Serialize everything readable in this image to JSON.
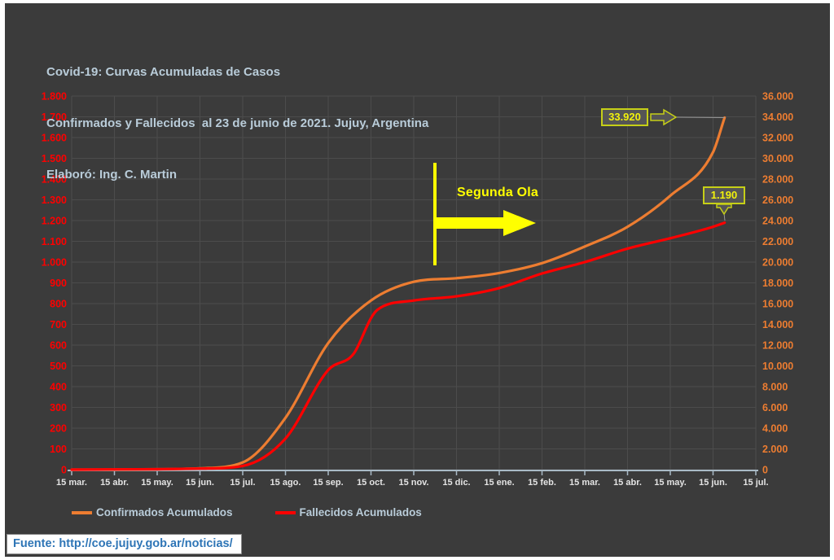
{
  "title": {
    "line1": "Covid-19: Curvas Acumuladas de Casos",
    "line2": "Confirmados y Fallecidos  al 23 de junio de 2021. Jujuy, Argentina",
    "line3": "Elaboró: Ing. C. Martin"
  },
  "chart_data": {
    "type": "line",
    "title": "Covid-19: Curvas Acumuladas de Casos Confirmados y Fallecidos al 23 de junio de 2021. Jujuy, Argentina",
    "grid": true,
    "x_tick_labels": [
      "15 mar.",
      "15 abr.",
      "15 may.",
      "15 jun.",
      "15 jul.",
      "15 ago.",
      "15 sep.",
      "15 oct.",
      "15 nov.",
      "15 dic.",
      "15 ene.",
      "15 feb.",
      "15 mar.",
      "15 abr.",
      "15 may.",
      "15 jun.",
      "15 jul."
    ],
    "y_axis_left": {
      "side": "left",
      "color": "#FF0000",
      "min": 0,
      "max": 1800,
      "step": 100,
      "tick_labels": [
        "1.800",
        "1.700",
        "1.600",
        "1.500",
        "1.400",
        "1.300",
        "1.200",
        "1.100",
        "1.000",
        "900",
        "800",
        "700",
        "600",
        "500",
        "400",
        "300",
        "200",
        "100",
        "0"
      ]
    },
    "y_axis_right": {
      "side": "right",
      "color": "#ED7D31",
      "min": 0,
      "max": 36000,
      "step": 2000,
      "tick_labels": [
        "36.000",
        "34.000",
        "32.000",
        "30.000",
        "28.000",
        "26.000",
        "24.000",
        "22.000",
        "20.000",
        "18.000",
        "16.000",
        "14.000",
        "12.000",
        "10.000",
        "8.000",
        "6.000",
        "4.000",
        "2.000",
        "0"
      ]
    },
    "series": [
      {
        "name": "Confirmados Acumulados",
        "axis": "right",
        "color": "#ED7D31",
        "x": [
          0,
          1,
          2,
          3,
          4,
          5,
          6,
          7,
          8,
          9,
          10,
          11,
          12,
          13,
          14,
          15,
          15.27
        ],
        "values": [
          0,
          10,
          40,
          130,
          700,
          5000,
          12200,
          16300,
          18100,
          18450,
          18950,
          19900,
          21500,
          23400,
          26400,
          30600,
          33920
        ],
        "end_value": 33920,
        "end_label": "33.920"
      },
      {
        "name": "Fallecidos Acumulados",
        "axis": "left",
        "color": "#FF0000",
        "x": [
          0,
          1,
          2,
          3,
          4,
          5,
          6,
          6.6,
          7,
          7.15,
          8,
          9,
          10,
          11,
          12,
          13,
          14,
          15,
          15.27
        ],
        "values": [
          0,
          1,
          2,
          5,
          18,
          150,
          480,
          560,
          730,
          770,
          815,
          835,
          875,
          945,
          1000,
          1065,
          1115,
          1170,
          1190
        ],
        "end_value": 1190,
        "end_label": "1.190"
      }
    ],
    "annotation": {
      "text": "Segunda Ola",
      "color": "#FFFF00",
      "note": "vertical yellow bar near Nov 2020 with thick right-pointing arrow"
    }
  },
  "annotations": {
    "segunda_ola": "Segunda Ola",
    "confirmados_end": "33.920",
    "fallecidos_end": "1.190"
  },
  "legend": {
    "items": [
      {
        "label": "Confirmados Acumulados",
        "color": "#ED7D31"
      },
      {
        "label": "Fallecidos Acumulados",
        "color": "#FF0000"
      }
    ]
  },
  "source": {
    "text": "Fuente: http://coe.jujuy.gob.ar/noticias/"
  },
  "colors": {
    "panel_bg": "#3B3B3B",
    "grid": "#4C4C4C",
    "title_text": "#B9CCD9",
    "x_label": "#E4E4E4",
    "axis_line": "#A9BAC6",
    "yellow": "#FFFF00",
    "callout_border": "#C6CF17",
    "callout_text": "#F2F20C",
    "callout_fill": "#555555",
    "leader_line": "#999999",
    "source_text": "#2E75B6",
    "page_bg": "#FFFFFF"
  }
}
